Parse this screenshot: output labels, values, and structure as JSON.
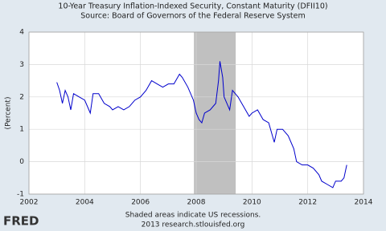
{
  "chart_data": {
    "type": "line",
    "title": "10-Year Treasury Inflation-Indexed Security, Constant Maturity (DFII10)",
    "subtitle": "Source: Board of Governors of the Federal Reserve System",
    "y_label": "(Percent)",
    "note": "Shaded areas indicate US recessions.",
    "credit": "2013 research.stlouisfed.org",
    "logo": "FRED",
    "recessions": [
      [
        2007.917,
        2009.417
      ]
    ],
    "x": [
      2003.0,
      2003.1,
      2003.2,
      2003.3,
      2003.4,
      2003.5,
      2003.6,
      2003.8,
      2004.0,
      2004.2,
      2004.3,
      2004.5,
      2004.7,
      2004.9,
      2005.0,
      2005.2,
      2005.4,
      2005.6,
      2005.8,
      2006.0,
      2006.2,
      2006.4,
      2006.6,
      2006.8,
      2007.0,
      2007.2,
      2007.4,
      2007.5,
      2007.7,
      2007.9,
      2008.0,
      2008.1,
      2008.2,
      2008.3,
      2008.5,
      2008.7,
      2008.8,
      2008.85,
      2008.95,
      2009.0,
      2009.2,
      2009.3,
      2009.5,
      2009.7,
      2009.9,
      2010.0,
      2010.2,
      2010.4,
      2010.6,
      2010.8,
      2010.9,
      2011.1,
      2011.3,
      2011.5,
      2011.6,
      2011.8,
      2012.0,
      2012.2,
      2012.4,
      2012.5,
      2012.7,
      2012.9,
      2013.0,
      2013.2,
      2013.3,
      2013.4
    ],
    "series": [
      {
        "name": "DFII10",
        "color": "#0000cc",
        "values": [
          2.45,
          2.2,
          1.8,
          2.2,
          2.0,
          1.6,
          2.1,
          2.0,
          1.9,
          1.5,
          2.1,
          2.1,
          1.8,
          1.7,
          1.6,
          1.7,
          1.6,
          1.7,
          1.9,
          2.0,
          2.2,
          2.5,
          2.4,
          2.3,
          2.4,
          2.4,
          2.7,
          2.6,
          2.3,
          1.9,
          1.5,
          1.3,
          1.2,
          1.5,
          1.6,
          1.8,
          2.5,
          3.1,
          2.6,
          2.0,
          1.6,
          2.2,
          2.0,
          1.7,
          1.4,
          1.5,
          1.6,
          1.3,
          1.2,
          0.6,
          1.0,
          1.0,
          0.8,
          0.4,
          0.0,
          -0.1,
          -0.1,
          -0.2,
          -0.4,
          -0.6,
          -0.7,
          -0.8,
          -0.6,
          -0.6,
          -0.5,
          -0.1
        ]
      }
    ],
    "xlim": [
      2002,
      2014
    ],
    "xticks": [
      2002,
      2004,
      2006,
      2008,
      2010,
      2012,
      2014
    ],
    "ylim": [
      -1,
      4
    ],
    "yticks": [
      -1,
      0,
      1,
      2,
      3,
      4
    ],
    "grid": true,
    "recession_color": "#c0c0c0"
  }
}
